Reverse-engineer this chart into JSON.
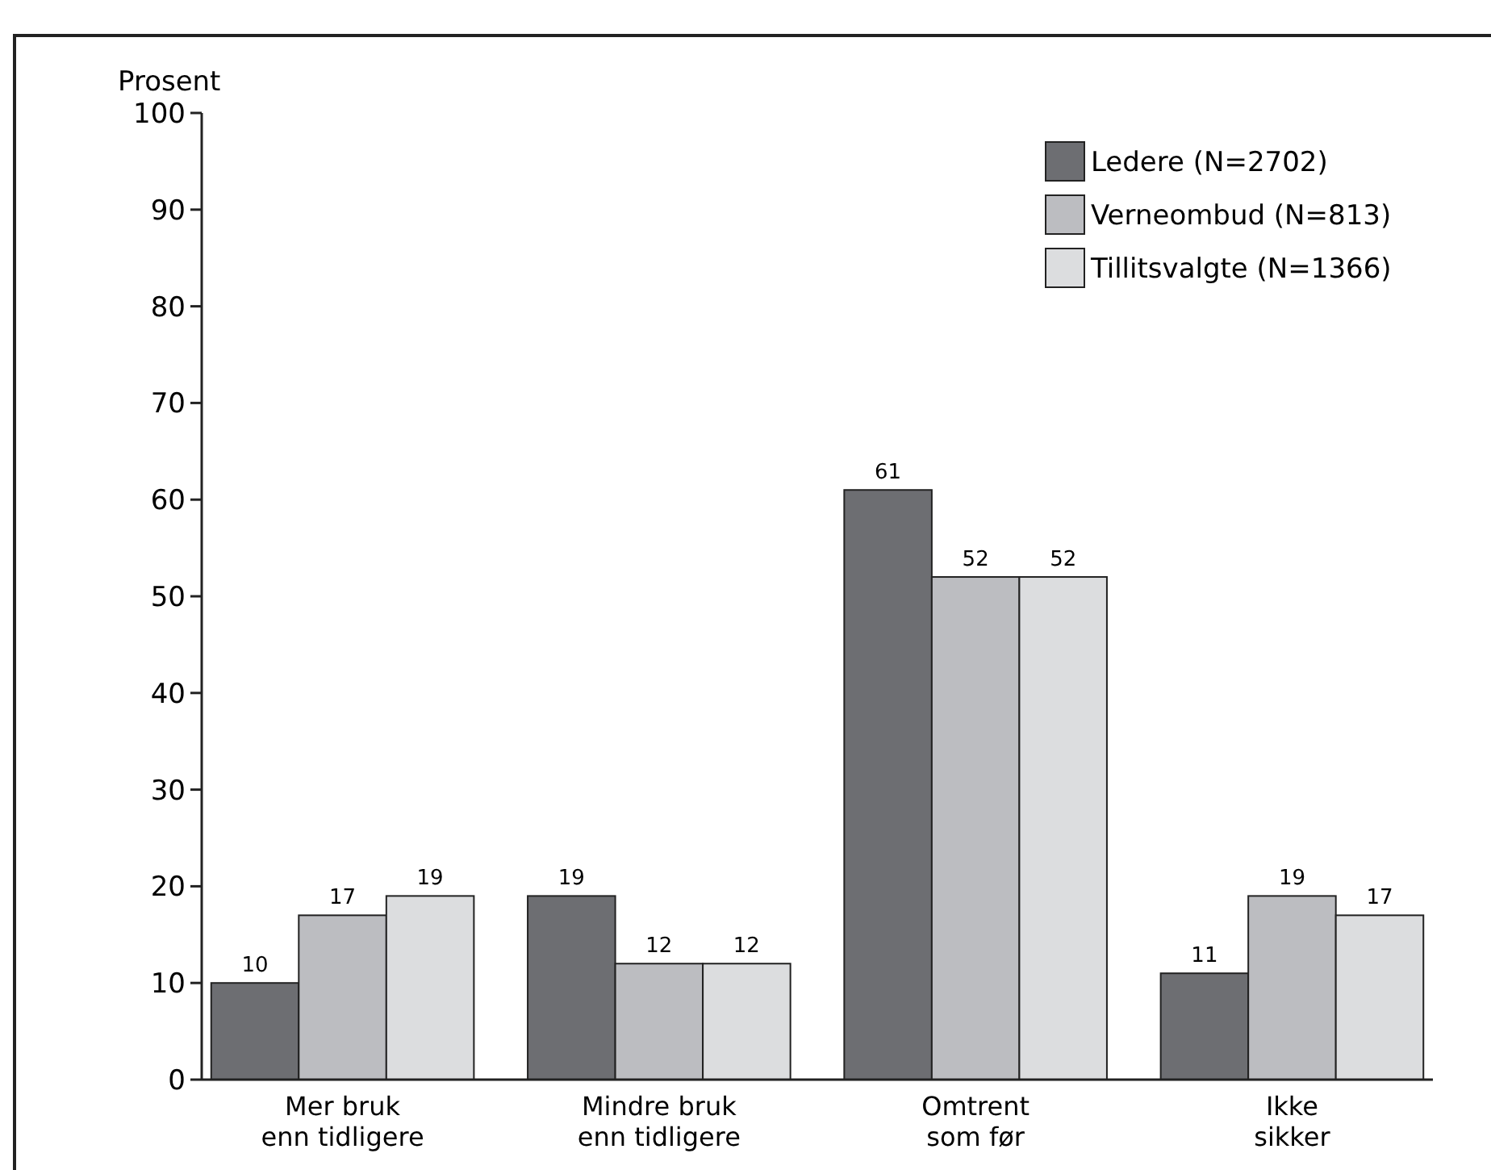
{
  "chart_data": {
    "type": "bar",
    "ylabel": "Prosent",
    "categories": [
      "Mer bruk\nenn tidligere",
      "Mindre bruk\nenn tidligere",
      "Omtrent\nsom før",
      "Ikke\nsikker"
    ],
    "series": [
      {
        "name": "Ledere (N=2702)",
        "color": "#6d6e72",
        "values": [
          10,
          19,
          61,
          11
        ]
      },
      {
        "name": "Verneombud (N=813)",
        "color": "#bcbdc1",
        "values": [
          17,
          12,
          52,
          19
        ]
      },
      {
        "name": "Tillitsvalgte (N=1366)",
        "color": "#dcdddf",
        "values": [
          19,
          12,
          52,
          17
        ]
      }
    ],
    "ylim": [
      0,
      100
    ],
    "yticks": [
      0,
      10,
      20,
      30,
      40,
      50,
      60,
      70,
      80,
      90,
      100
    ],
    "data_labels": true,
    "legend": "top right",
    "grid": false
  }
}
